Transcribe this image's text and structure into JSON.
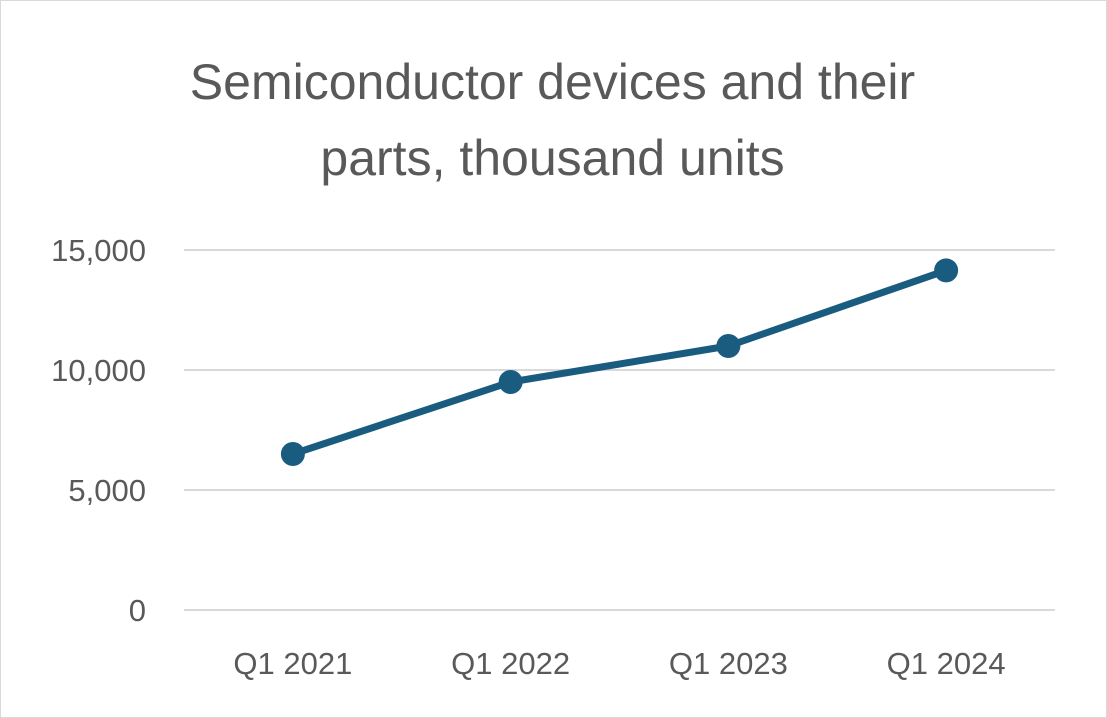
{
  "chart_data": {
    "type": "line",
    "title_lines": [
      "Semiconductor devices and their",
      "parts, thousand units"
    ],
    "categories": [
      "Q1 2021",
      "Q1 2022",
      "Q1 2023",
      "Q1 2024"
    ],
    "series": [
      {
        "values": [
          6500,
          9500,
          11000,
          14150
        ]
      }
    ],
    "y_ticks": [
      "0",
      "5,000",
      "10,000",
      "15,000"
    ],
    "ylim": [
      0,
      15000
    ],
    "grid": true,
    "legend": "none",
    "line_color": "#1a5c80",
    "grid_color": "#d9d9d9"
  }
}
